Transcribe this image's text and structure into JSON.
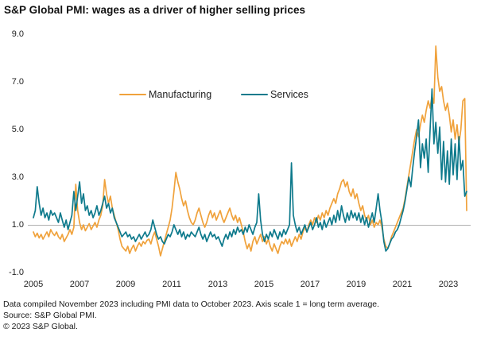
{
  "title": "S&P Global PMI: wages as a driver of higher selling prices",
  "legend": {
    "manufacturing_label": "Manufacturing",
    "services_label": "Services"
  },
  "footer": {
    "line1": "Data compiled November 2023 including PMI data to October 2023. Axis scale 1 = long term average.",
    "line2": "Source: S&P Global PMI.",
    "line3": "© 2023 S&P Global."
  },
  "colors": {
    "manufacturing": "#F0A23C",
    "services": "#0E7A8C",
    "gridline": "#AFAFAF",
    "text": "#1a1a1a"
  },
  "chart_data": {
    "type": "line",
    "title": "S&P Global PMI: wages as a driver of higher selling prices",
    "xlabel": "",
    "ylabel": "",
    "x_start_year": 2005,
    "x_end": "October 2023",
    "x_frequency": "monthly",
    "xlim": [
      2005.0,
      2023.83
    ],
    "ylim": [
      -1.0,
      9.0
    ],
    "grid": "single horizontal gridline at y=1.0 (long term average)",
    "legend_position": "inside top, horizontal",
    "y_ticks": [
      9.0,
      7.0,
      5.0,
      3.0,
      1.0,
      -1.0
    ],
    "y_tick_labels": [
      "9.0",
      "7.0",
      "5.0",
      "3.0",
      "1.0",
      "-1.0"
    ],
    "x_tick_labels": [
      "2005",
      "2007",
      "2009",
      "2011",
      "2013",
      "2015",
      "2017",
      "2019",
      "2021",
      "2023"
    ],
    "series": [
      {
        "name": "Manufacturing",
        "color": "#F0A23C",
        "values": [
          0.7,
          0.5,
          0.65,
          0.45,
          0.6,
          0.4,
          0.55,
          0.7,
          0.5,
          0.8,
          0.65,
          0.55,
          0.7,
          0.5,
          0.4,
          0.6,
          0.3,
          0.45,
          0.6,
          0.8,
          0.6,
          0.9,
          2.7,
          1.6,
          1.1,
          0.8,
          1.0,
          0.75,
          0.9,
          1.05,
          0.8,
          0.95,
          1.1,
          0.9,
          1.2,
          1.4,
          1.8,
          2.9,
          2.3,
          1.9,
          2.2,
          1.7,
          1.4,
          1.1,
          0.8,
          0.4,
          0.1,
          0.0,
          -0.1,
          0.1,
          -0.2,
          0.0,
          0.15,
          -0.1,
          0.1,
          0.25,
          0.1,
          0.3,
          0.2,
          0.35,
          0.4,
          0.2,
          0.5,
          0.7,
          0.4,
          0.1,
          -0.3,
          0.0,
          0.3,
          0.6,
          0.9,
          1.2,
          1.7,
          2.4,
          3.2,
          2.8,
          2.5,
          2.1,
          1.8,
          2.0,
          1.6,
          1.3,
          1.1,
          1.0,
          1.2,
          1.5,
          1.7,
          1.4,
          1.1,
          0.9,
          1.1,
          1.4,
          1.6,
          1.3,
          1.5,
          1.2,
          1.4,
          1.6,
          1.3,
          1.1,
          1.3,
          1.5,
          1.7,
          1.4,
          1.2,
          1.4,
          1.1,
          1.3,
          1.0,
          0.7,
          0.3,
          0.0,
          0.2,
          -0.1,
          0.3,
          0.5,
          0.2,
          0.4,
          0.6,
          0.3,
          0.5,
          0.2,
          0.4,
          0.1,
          -0.1,
          0.2,
          0.0,
          -0.2,
          0.1,
          0.3,
          0.2,
          0.4,
          0.2,
          0.4,
          0.1,
          0.3,
          0.5,
          0.3,
          0.6,
          0.4,
          0.7,
          0.9,
          0.7,
          1.0,
          1.2,
          1.0,
          1.3,
          1.1,
          1.4,
          1.2,
          1.5,
          1.3,
          1.6,
          1.4,
          1.7,
          1.9,
          2.1,
          1.9,
          2.3,
          2.5,
          2.8,
          2.9,
          2.6,
          2.8,
          2.4,
          2.2,
          2.5,
          2.1,
          2.3,
          1.9,
          1.6,
          1.8,
          1.4,
          1.2,
          1.4,
          1.0,
          1.2,
          0.9,
          1.1,
          1.0,
          1.2,
          0.9,
          0.4,
          0.1,
          0.0,
          0.2,
          0.5,
          0.7,
          0.9,
          1.1,
          1.3,
          1.5,
          1.7,
          2.1,
          2.6,
          3.1,
          3.6,
          4.1,
          4.6,
          5.0,
          4.7,
          5.2,
          5.6,
          5.3,
          5.8,
          6.2,
          5.9,
          6.4,
          6.1,
          8.5,
          7.2,
          6.6,
          6.8,
          6.2,
          5.8,
          6.1,
          5.6,
          4.9,
          5.4,
          4.6,
          5.2,
          4.4,
          5.0,
          6.2,
          6.3,
          1.6
        ]
      },
      {
        "name": "Services",
        "color": "#0E7A8C",
        "values": [
          1.3,
          1.6,
          2.6,
          1.9,
          1.4,
          1.7,
          1.3,
          1.5,
          1.2,
          1.6,
          1.4,
          1.5,
          1.3,
          1.1,
          1.5,
          1.2,
          0.9,
          1.2,
          0.8,
          1.1,
          1.4,
          2.4,
          1.6,
          2.2,
          2.8,
          1.9,
          2.3,
          1.6,
          1.8,
          1.4,
          1.6,
          1.3,
          1.5,
          1.8,
          1.4,
          1.6,
          1.9,
          2.2,
          1.7,
          1.9,
          1.5,
          1.7,
          1.3,
          1.1,
          0.9,
          0.7,
          0.5,
          0.6,
          0.7,
          0.5,
          0.6,
          0.4,
          0.5,
          0.3,
          0.45,
          0.6,
          0.4,
          0.55,
          0.7,
          0.5,
          0.6,
          0.8,
          1.2,
          0.9,
          0.6,
          0.4,
          0.5,
          0.3,
          0.2,
          0.4,
          0.6,
          0.5,
          0.7,
          1.0,
          0.8,
          0.6,
          0.8,
          0.5,
          0.7,
          0.4,
          0.6,
          0.5,
          0.7,
          0.6,
          0.5,
          0.7,
          0.9,
          0.6,
          0.4,
          0.6,
          0.3,
          0.5,
          0.7,
          0.5,
          0.6,
          0.4,
          0.5,
          0.3,
          0.1,
          0.4,
          0.6,
          0.4,
          0.7,
          0.5,
          0.8,
          0.6,
          0.9,
          0.7,
          0.8,
          0.6,
          0.9,
          0.7,
          1.0,
          0.8,
          0.6,
          0.9,
          1.1,
          2.3,
          1.2,
          0.6,
          0.3,
          0.6,
          0.4,
          0.7,
          0.5,
          0.8,
          0.6,
          0.4,
          0.7,
          0.5,
          0.8,
          0.6,
          0.8,
          1.0,
          3.6,
          1.4,
          1.0,
          0.7,
          0.9,
          0.6,
          0.8,
          1.0,
          0.7,
          0.9,
          1.1,
          0.8,
          1.0,
          1.3,
          0.9,
          1.1,
          0.8,
          1.2,
          0.9,
          1.1,
          1.3,
          1.0,
          1.4,
          1.1,
          1.6,
          1.2,
          1.8,
          1.4,
          1.1,
          1.5,
          1.2,
          1.6,
          1.3,
          1.5,
          1.2,
          1.5,
          1.1,
          1.4,
          1.0,
          1.3,
          0.9,
          1.2,
          1.5,
          1.1,
          1.7,
          2.3,
          1.6,
          1.1,
          0.3,
          -0.1,
          0.0,
          0.2,
          0.4,
          0.5,
          0.7,
          0.8,
          1.0,
          1.3,
          1.6,
          2.0,
          2.5,
          3.0,
          2.6,
          3.4,
          4.1,
          4.7,
          5.4,
          3.4,
          4.4,
          3.8,
          4.6,
          3.2,
          5.0,
          6.7,
          4.4,
          5.3,
          4.0,
          5.1,
          2.9,
          4.5,
          2.8,
          4.1,
          2.7,
          4.6,
          3.1,
          4.4,
          2.9,
          4.7,
          3.3,
          3.7,
          2.2,
          2.4
        ]
      }
    ]
  }
}
